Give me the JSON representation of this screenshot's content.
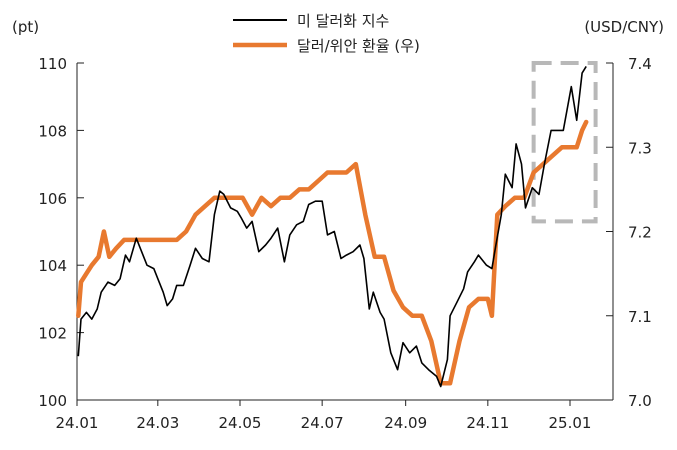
{
  "chart_data": {
    "type": "line",
    "left_unit": "(pt)",
    "right_unit": "(USD/CNY)",
    "x_ticks": [
      "24.01",
      "24.03",
      "24.05",
      "24.07",
      "24.09",
      "24.11",
      "25.01"
    ],
    "y_left": {
      "range": [
        100,
        110
      ],
      "ticks": [
        "100",
        "102",
        "104",
        "106",
        "108",
        "110"
      ]
    },
    "y_right": {
      "range": [
        7.0,
        7.4
      ],
      "ticks": [
        "7.0",
        "7.1",
        "7.2",
        "7.3",
        "7.4"
      ]
    },
    "legend_position": "top-center",
    "grid": false,
    "series": [
      {
        "name": "미 달러화 지수",
        "axis": "left",
        "color": "#000000",
        "points": [
          [
            "2024-01-02",
            101.3
          ],
          [
            "2024-01-04",
            102.4
          ],
          [
            "2024-01-08",
            102.6
          ],
          [
            "2024-01-12",
            102.4
          ],
          [
            "2024-01-16",
            102.7
          ],
          [
            "2024-01-19",
            103.2
          ],
          [
            "2024-01-24",
            103.5
          ],
          [
            "2024-01-29",
            103.4
          ],
          [
            "2024-02-02",
            103.6
          ],
          [
            "2024-02-06",
            104.3
          ],
          [
            "2024-02-09",
            104.1
          ],
          [
            "2024-02-14",
            104.8
          ],
          [
            "2024-02-17",
            104.5
          ],
          [
            "2024-02-22",
            104.0
          ],
          [
            "2024-02-27",
            103.9
          ],
          [
            "2024-03-01",
            103.6
          ],
          [
            "2024-03-05",
            103.2
          ],
          [
            "2024-03-08",
            102.8
          ],
          [
            "2024-03-12",
            103.0
          ],
          [
            "2024-03-15",
            103.4
          ],
          [
            "2024-03-20",
            103.4
          ],
          [
            "2024-03-25",
            104.0
          ],
          [
            "2024-03-29",
            104.5
          ],
          [
            "2024-04-03",
            104.2
          ],
          [
            "2024-04-08",
            104.1
          ],
          [
            "2024-04-12",
            105.5
          ],
          [
            "2024-04-16",
            106.2
          ],
          [
            "2024-04-19",
            106.1
          ],
          [
            "2024-04-24",
            105.7
          ],
          [
            "2024-04-29",
            105.6
          ],
          [
            "2024-05-02",
            105.4
          ],
          [
            "2024-05-06",
            105.1
          ],
          [
            "2024-05-10",
            105.3
          ],
          [
            "2024-05-15",
            104.4
          ],
          [
            "2024-05-20",
            104.6
          ],
          [
            "2024-05-24",
            104.8
          ],
          [
            "2024-05-29",
            105.1
          ],
          [
            "2024-06-03",
            104.1
          ],
          [
            "2024-06-07",
            104.9
          ],
          [
            "2024-06-12",
            105.2
          ],
          [
            "2024-06-17",
            105.3
          ],
          [
            "2024-06-21",
            105.8
          ],
          [
            "2024-06-26",
            105.9
          ],
          [
            "2024-07-01",
            105.9
          ],
          [
            "2024-07-05",
            104.9
          ],
          [
            "2024-07-10",
            105.0
          ],
          [
            "2024-07-15",
            104.2
          ],
          [
            "2024-07-19",
            104.3
          ],
          [
            "2024-07-24",
            104.4
          ],
          [
            "2024-07-29",
            104.6
          ],
          [
            "2024-08-01",
            104.2
          ],
          [
            "2024-08-05",
            102.7
          ],
          [
            "2024-08-08",
            103.2
          ],
          [
            "2024-08-13",
            102.6
          ],
          [
            "2024-08-16",
            102.4
          ],
          [
            "2024-08-21",
            101.4
          ],
          [
            "2024-08-26",
            100.9
          ],
          [
            "2024-08-30",
            101.7
          ],
          [
            "2024-09-04",
            101.4
          ],
          [
            "2024-09-09",
            101.6
          ],
          [
            "2024-09-13",
            101.1
          ],
          [
            "2024-09-18",
            100.9
          ],
          [
            "2024-09-24",
            100.7
          ],
          [
            "2024-09-27",
            100.4
          ],
          [
            "2024-10-02",
            101.2
          ],
          [
            "2024-10-04",
            102.5
          ],
          [
            "2024-10-09",
            102.9
          ],
          [
            "2024-10-14",
            103.3
          ],
          [
            "2024-10-17",
            103.8
          ],
          [
            "2024-10-22",
            104.1
          ],
          [
            "2024-10-25",
            104.3
          ],
          [
            "2024-10-31",
            104.0
          ],
          [
            "2024-11-04",
            103.9
          ],
          [
            "2024-11-07",
            104.6
          ],
          [
            "2024-11-11",
            105.5
          ],
          [
            "2024-11-14",
            106.7
          ],
          [
            "2024-11-19",
            106.3
          ],
          [
            "2024-11-22",
            107.6
          ],
          [
            "2024-11-26",
            107.0
          ],
          [
            "2024-11-29",
            105.7
          ],
          [
            "2024-12-04",
            106.3
          ],
          [
            "2024-12-09",
            106.1
          ],
          [
            "2024-12-13",
            107.0
          ],
          [
            "2024-12-18",
            108.0
          ],
          [
            "2024-12-23",
            108.0
          ],
          [
            "2024-12-27",
            108.0
          ],
          [
            "2025-01-02",
            109.3
          ],
          [
            "2025-01-06",
            108.3
          ],
          [
            "2025-01-10",
            109.7
          ],
          [
            "2025-01-13",
            109.9
          ]
        ]
      },
      {
        "name": "달러/위안 환율 (우)",
        "axis": "right",
        "color": "#E8792F",
        "points": [
          [
            "2024-01-02",
            7.1
          ],
          [
            "2024-01-04",
            7.14
          ],
          [
            "2024-01-08",
            7.15
          ],
          [
            "2024-01-12",
            7.16
          ],
          [
            "2024-01-17",
            7.17
          ],
          [
            "2024-01-21",
            7.2
          ],
          [
            "2024-01-25",
            7.17
          ],
          [
            "2024-01-30",
            7.18
          ],
          [
            "2024-02-05",
            7.19
          ],
          [
            "2024-02-12",
            7.19
          ],
          [
            "2024-02-19",
            7.19
          ],
          [
            "2024-02-26",
            7.19
          ],
          [
            "2024-03-01",
            7.19
          ],
          [
            "2024-03-08",
            7.19
          ],
          [
            "2024-03-15",
            7.19
          ],
          [
            "2024-03-22",
            7.2
          ],
          [
            "2024-03-29",
            7.22
          ],
          [
            "2024-04-05",
            7.23
          ],
          [
            "2024-04-12",
            7.24
          ],
          [
            "2024-04-19",
            7.24
          ],
          [
            "2024-04-26",
            7.24
          ],
          [
            "2024-05-03",
            7.24
          ],
          [
            "2024-05-10",
            7.22
          ],
          [
            "2024-05-17",
            7.24
          ],
          [
            "2024-05-24",
            7.23
          ],
          [
            "2024-05-31",
            7.24
          ],
          [
            "2024-06-07",
            7.24
          ],
          [
            "2024-06-14",
            7.25
          ],
          [
            "2024-06-21",
            7.25
          ],
          [
            "2024-06-28",
            7.26
          ],
          [
            "2024-07-05",
            7.27
          ],
          [
            "2024-07-12",
            7.27
          ],
          [
            "2024-07-19",
            7.27
          ],
          [
            "2024-07-26",
            7.28
          ],
          [
            "2024-08-02",
            7.22
          ],
          [
            "2024-08-09",
            7.17
          ],
          [
            "2024-08-16",
            7.17
          ],
          [
            "2024-08-23",
            7.13
          ],
          [
            "2024-08-30",
            7.11
          ],
          [
            "2024-09-06",
            7.1
          ],
          [
            "2024-09-13",
            7.1
          ],
          [
            "2024-09-20",
            7.07
          ],
          [
            "2024-09-27",
            7.02
          ],
          [
            "2024-10-04",
            7.02
          ],
          [
            "2024-10-11",
            7.07
          ],
          [
            "2024-10-18",
            7.11
          ],
          [
            "2024-10-25",
            7.12
          ],
          [
            "2024-11-01",
            7.12
          ],
          [
            "2024-11-04",
            7.1
          ],
          [
            "2024-11-08",
            7.22
          ],
          [
            "2024-11-14",
            7.23
          ],
          [
            "2024-11-21",
            7.24
          ],
          [
            "2024-11-28",
            7.24
          ],
          [
            "2024-12-05",
            7.27
          ],
          [
            "2024-12-12",
            7.28
          ],
          [
            "2024-12-19",
            7.29
          ],
          [
            "2024-12-26",
            7.3
          ],
          [
            "2025-01-02",
            7.3
          ],
          [
            "2025-01-06",
            7.3
          ],
          [
            "2025-01-10",
            7.32
          ],
          [
            "2025-01-13",
            7.33
          ]
        ]
      }
    ],
    "highlight_box": {
      "from": "2024-12-05",
      "to": "2025-01-20",
      "y_range": [
        105.3,
        110
      ],
      "style": "dashed",
      "color": "#B8B8B8"
    }
  }
}
